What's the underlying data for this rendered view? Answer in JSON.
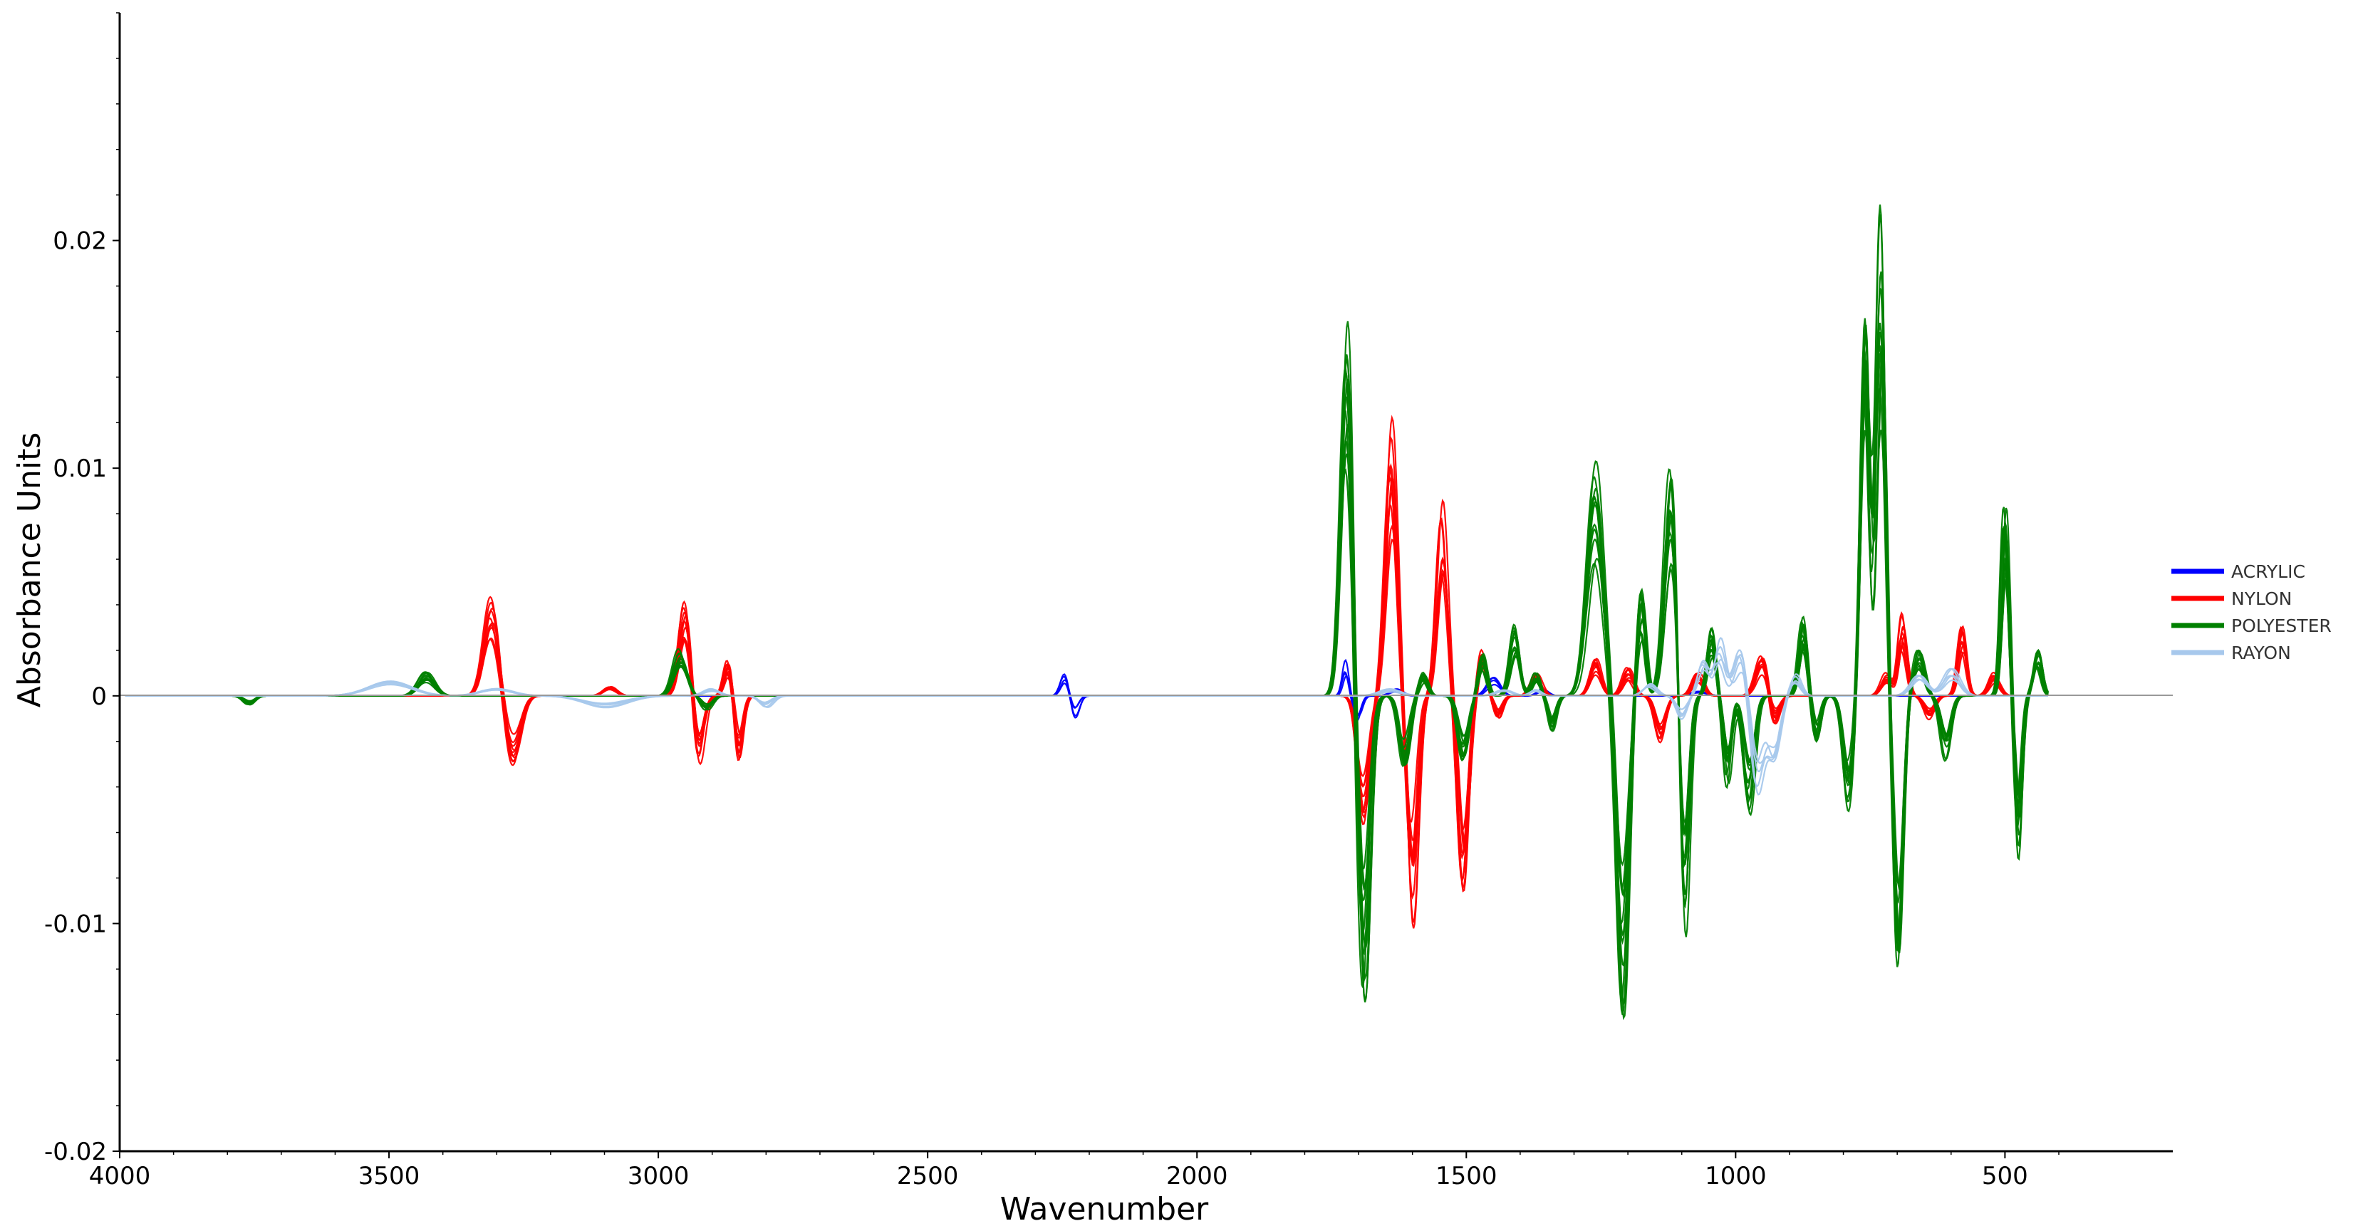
{
  "chart_data": {
    "type": "line",
    "title": "",
    "xlabel": "Wavenumber",
    "ylabel": "Absorbance Units",
    "xlim": [
      4000,
      400
    ],
    "ylim": [
      -0.02,
      0.03
    ],
    "x_reversed": true,
    "grid": false,
    "legend_position": "right",
    "x_ticks": [
      4000,
      3500,
      3000,
      2500,
      2000,
      1500,
      1000,
      500
    ],
    "x_tick_labels": [
      "4000",
      "3500",
      "3000",
      "2500",
      "2000",
      "1500",
      "1000",
      "500"
    ],
    "y_ticks": [
      -0.02,
      -0.01,
      0,
      0.01,
      0.02
    ],
    "y_tick_labels": [
      "-0.02",
      "-0.01",
      "0",
      "0.01",
      "0.02"
    ],
    "series": [
      {
        "name": "ACRYLIC",
        "color": "#0000ff",
        "peaks": [
          [
            2245,
            0.001,
            8
          ],
          [
            2228,
            -0.001,
            8
          ],
          [
            1725,
            0.0015,
            6
          ],
          [
            1700,
            -0.0012,
            7
          ],
          [
            1630,
            0.0003,
            12
          ],
          [
            1450,
            0.0008,
            12
          ],
          [
            1360,
            0.0003,
            10
          ],
          [
            1070,
            0.0002,
            15
          ]
        ]
      },
      {
        "name": "NYLON",
        "color": "#ff0000",
        "peaks": [
          [
            3310,
            0.0042,
            14
          ],
          [
            3270,
            -0.003,
            14
          ],
          [
            3090,
            0.0004,
            12
          ],
          [
            2950,
            0.0045,
            11
          ],
          [
            2925,
            -0.003,
            10
          ],
          [
            2870,
            0.0018,
            8
          ],
          [
            2850,
            -0.0032,
            8
          ],
          [
            1690,
            -0.006,
            11
          ],
          [
            1640,
            0.0118,
            11
          ],
          [
            1600,
            -0.01,
            10
          ],
          [
            1545,
            0.0082,
            10
          ],
          [
            1505,
            -0.0092,
            10
          ],
          [
            1470,
            0.002,
            8
          ],
          [
            1440,
            -0.001,
            8
          ],
          [
            1370,
            0.001,
            10
          ],
          [
            1260,
            0.0016,
            10
          ],
          [
            1200,
            0.0012,
            10
          ],
          [
            1140,
            -0.002,
            10
          ],
          [
            1070,
            0.001,
            10
          ],
          [
            950,
            0.002,
            12
          ],
          [
            930,
            -0.0015,
            10
          ],
          [
            720,
            0.001,
            10
          ],
          [
            690,
            0.0035,
            8
          ],
          [
            640,
            -0.001,
            10
          ],
          [
            580,
            0.0032,
            8
          ],
          [
            520,
            0.001,
            10
          ]
        ]
      },
      {
        "name": "POLYESTER",
        "color": "#008000",
        "peaks": [
          [
            3760,
            -0.0004,
            10
          ],
          [
            3430,
            0.001,
            15
          ],
          [
            2960,
            0.002,
            12
          ],
          [
            2910,
            -0.0006,
            10
          ],
          [
            1722,
            0.0172,
            11
          ],
          [
            1690,
            -0.0135,
            11
          ],
          [
            1615,
            -0.003,
            10
          ],
          [
            1580,
            0.001,
            8
          ],
          [
            1505,
            -0.0028,
            10
          ],
          [
            1470,
            0.002,
            8
          ],
          [
            1410,
            0.003,
            9
          ],
          [
            1370,
            0.001,
            8
          ],
          [
            1340,
            -0.0015,
            8
          ],
          [
            1260,
            0.0102,
            15
          ],
          [
            1210,
            -0.0135,
            11
          ],
          [
            1175,
            0.0045,
            8
          ],
          [
            1120,
            0.01,
            12
          ],
          [
            1095,
            -0.011,
            9
          ],
          [
            1045,
            0.003,
            8
          ],
          [
            1015,
            -0.004,
            8
          ],
          [
            975,
            -0.005,
            10
          ],
          [
            875,
            0.0035,
            8
          ],
          [
            850,
            -0.002,
            8
          ],
          [
            790,
            -0.005,
            10
          ],
          [
            760,
            0.016,
            8
          ],
          [
            730,
            0.021,
            9
          ],
          [
            698,
            -0.014,
            9
          ],
          [
            660,
            0.002,
            10
          ],
          [
            610,
            -0.003,
            10
          ],
          [
            500,
            0.0084,
            7
          ],
          [
            475,
            -0.007,
            7
          ],
          [
            440,
            0.002,
            8
          ]
        ]
      },
      {
        "name": "RAYON",
        "color": "#a7c8ec",
        "peaks": [
          [
            3500,
            0.0007,
            40
          ],
          [
            3300,
            0.0003,
            30
          ],
          [
            3100,
            -0.0006,
            40
          ],
          [
            2900,
            0.0003,
            15
          ],
          [
            2800,
            -0.0005,
            12
          ],
          [
            1640,
            0.0003,
            20
          ],
          [
            1430,
            0.0003,
            15
          ],
          [
            1370,
            0.0003,
            10
          ],
          [
            1160,
            0.0006,
            12
          ],
          [
            1100,
            -0.001,
            10
          ],
          [
            1060,
            0.0018,
            10
          ],
          [
            1030,
            0.0025,
            10
          ],
          [
            990,
            0.002,
            12
          ],
          [
            960,
            -0.005,
            12
          ],
          [
            930,
            -0.003,
            12
          ],
          [
            890,
            0.001,
            10
          ],
          [
            660,
            0.001,
            15
          ],
          [
            600,
            0.0012,
            15
          ]
        ]
      }
    ]
  }
}
